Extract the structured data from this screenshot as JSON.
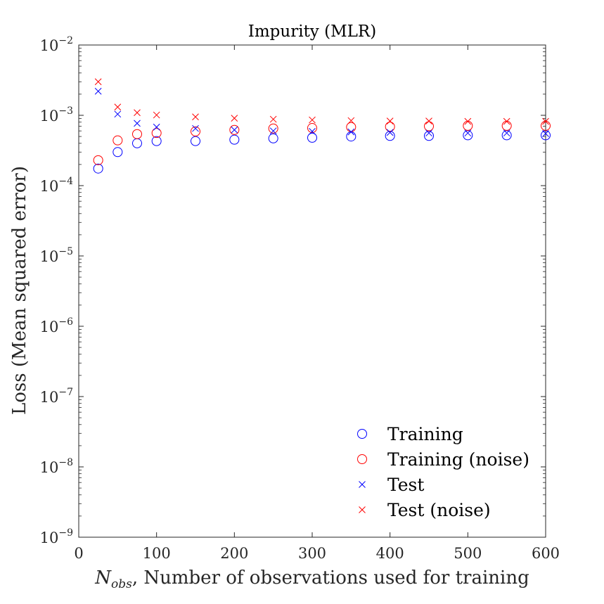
{
  "chart_data": {
    "type": "scatter",
    "title": "Impurity (MLR)",
    "xlabel": {
      "symbol": "N",
      "subscript": "obs",
      "text": ", Number of observations used for training"
    },
    "ylabel": "Loss (Mean squared error)",
    "xlim": [
      0,
      600
    ],
    "ylim": [
      1e-09,
      0.01
    ],
    "yscale": "log",
    "xticks": [
      0,
      100,
      200,
      300,
      400,
      500,
      600
    ],
    "xtick_labels": [
      "0",
      "100",
      "200",
      "300",
      "400",
      "500",
      "600"
    ],
    "yticks": [
      {
        "value": 0.01,
        "base": "10",
        "exp": "−2"
      },
      {
        "value": 0.001,
        "base": "10",
        "exp": "−3"
      },
      {
        "value": 0.0001,
        "base": "10",
        "exp": "−4"
      },
      {
        "value": 1e-05,
        "base": "10",
        "exp": "−5"
      },
      {
        "value": 1e-06,
        "base": "10",
        "exp": "−6"
      },
      {
        "value": 1e-07,
        "base": "10",
        "exp": "−7"
      },
      {
        "value": 1e-08,
        "base": "10",
        "exp": "−8"
      },
      {
        "value": 1e-09,
        "base": "10",
        "exp": "−9"
      }
    ],
    "legend_position": "bottom-right",
    "x": [
      25,
      50,
      75,
      100,
      150,
      200,
      250,
      300,
      350,
      400,
      450,
      500,
      550,
      600
    ],
    "series": [
      {
        "name": "Training",
        "marker": "o",
        "color": "#0000ff",
        "values": [
          0.000175,
          0.0003,
          0.0004,
          0.00043,
          0.00043,
          0.00045,
          0.00047,
          0.00048,
          0.0005,
          0.00051,
          0.00051,
          0.00052,
          0.00052,
          0.00052
        ]
      },
      {
        "name": "Training (noise)",
        "marker": "o",
        "color": "#ff0000",
        "values": [
          0.00023,
          0.00044,
          0.00054,
          0.00056,
          0.00059,
          0.00062,
          0.00065,
          0.00066,
          0.00068,
          0.00069,
          0.0007,
          0.00071,
          0.00071,
          0.00071
        ]
      },
      {
        "name": "Test",
        "marker": "x",
        "color": "#0000ff",
        "values": [
          0.0022,
          0.00104,
          0.00077,
          0.00068,
          0.00065,
          0.00062,
          0.0006,
          0.00059,
          0.00058,
          0.00057,
          0.00056,
          0.00056,
          0.00056,
          0.00055
        ]
      },
      {
        "name": "Test (noise)",
        "marker": "x",
        "color": "#ff0000",
        "values": [
          0.003,
          0.00131,
          0.00109,
          0.00101,
          0.00095,
          0.00091,
          0.00088,
          0.00086,
          0.00084,
          0.00083,
          0.00083,
          0.00082,
          0.00082,
          0.00082
        ]
      }
    ]
  }
}
